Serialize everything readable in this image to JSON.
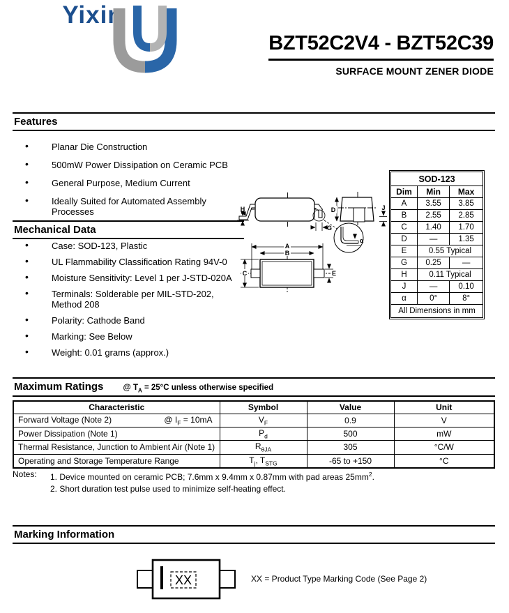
{
  "logo": {
    "brand": "Yixin"
  },
  "header": {
    "title": "BZT52C2V4 - BZT52C39",
    "subtitle": "SURFACE MOUNT ZENER DIODE"
  },
  "features": {
    "heading": "Features",
    "items": [
      "Planar Die Construction",
      "500mW Power Dissipation on Ceramic PCB",
      "General Purpose, Medium Current",
      "Ideally Suited for Automated Assembly\nProcesses"
    ]
  },
  "mechanical": {
    "heading": "Mechanical Data",
    "items": [
      "Case: SOD-123, Plastic",
      "UL Flammability Classification Rating 94V-0",
      "Moisture Sensitivity: Level 1 per J-STD-020A",
      "Terminals: Solderable per MIL-STD-202,\nMethod 208",
      "Polarity: Cathode Band",
      "Marking: See Below",
      "Weight: 0.01 grams (approx.)"
    ]
  },
  "package_drawing": {
    "labels": {
      "h": "H",
      "g": "G",
      "d": "D",
      "j": "J",
      "alpha": "α",
      "a": "A",
      "b": "B",
      "c": "C",
      "e": "E"
    }
  },
  "dimensions": {
    "title": "SOD-123",
    "headers": [
      "Dim",
      "Min",
      "Max"
    ],
    "rows": [
      {
        "dim": "A",
        "min": "3.55",
        "max": "3.85"
      },
      {
        "dim": "B",
        "min": "2.55",
        "max": "2.85"
      },
      {
        "dim": "C",
        "min": "1.40",
        "max": "1.70"
      },
      {
        "dim": "D",
        "min": "—",
        "max": "1.35"
      },
      {
        "dim": "E",
        "span": "0.55 Typical"
      },
      {
        "dim": "G",
        "min": "0.25",
        "max": "—"
      },
      {
        "dim": "H",
        "span": "0.11 Typical"
      },
      {
        "dim": "J",
        "min": "—",
        "max": "0.10"
      },
      {
        "dim": "α",
        "min": "0°",
        "max": "8°"
      }
    ],
    "footer": "All Dimensions in mm"
  },
  "ratings": {
    "heading": "Maximum Ratings",
    "condition": "@ T~A~ = 25°C unless otherwise specified",
    "headers": [
      "Characteristic",
      "Symbol",
      "Value",
      "Unit"
    ],
    "rows": [
      {
        "characteristic": "Forward Voltage (Note 2)",
        "condition": "@ I~F~ = 10mA",
        "symbol": "V~F~",
        "value": "0.9",
        "unit": "V"
      },
      {
        "characteristic": "Power Dissipation (Note 1)",
        "condition": "",
        "symbol": "P~d~",
        "value": "500",
        "unit": "mW"
      },
      {
        "characteristic": "Thermal Resistance, Junction to Ambient Air (Note 1)",
        "condition": "",
        "symbol": "R~θJA~",
        "value": "305",
        "unit": "°C/W"
      },
      {
        "characteristic": "Operating and Storage Temperature Range",
        "condition": "",
        "symbol": "T~j~, T~STG~",
        "value": "-65 to +150",
        "unit": "°C"
      }
    ]
  },
  "notes": {
    "label": "Notes:",
    "items": [
      "1. Device mounted on ceramic PCB; 7.6mm x 9.4mm x 0.87mm with pad areas 25mm^2^.",
      "2. Short duration test pulse used to minimize self-heating effect."
    ]
  },
  "marking": {
    "heading": "Marking Information",
    "code": "XX",
    "description": "XX = Product Type Marking Code (See Page 2)"
  },
  "colors": {
    "logo_blue": "#2a66a8",
    "logo_gray": "#9b9b9b",
    "brand_blue": "#1c4f8e"
  }
}
